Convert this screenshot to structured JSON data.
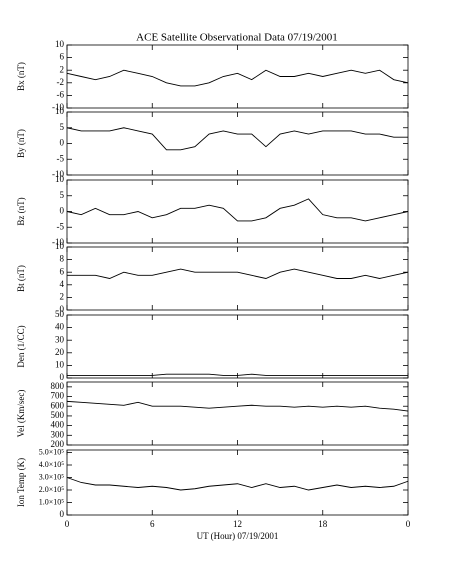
{
  "chart_data": [
    {
      "type": "line",
      "title": "ACE Satellite Observational Data   07/19/2001",
      "ylabel": "Bx (nT)",
      "xlim": [
        0,
        24
      ],
      "xticks": [
        0,
        6,
        12,
        18,
        {
          "value": 24,
          "label": "0"
        }
      ],
      "ylim": [
        -10,
        10
      ],
      "yticks": [
        -10,
        -6,
        -2,
        2,
        6,
        10
      ],
      "x": [
        0,
        1,
        2,
        3,
        4,
        5,
        6,
        7,
        8,
        9,
        10,
        11,
        12,
        13,
        14,
        15,
        16,
        17,
        18,
        19,
        20,
        21,
        22,
        23,
        24
      ],
      "color": "#000000",
      "values": [
        1,
        0,
        -1,
        0,
        2,
        1,
        0,
        -2,
        -3,
        -3,
        -2,
        0,
        1,
        -1,
        2,
        0,
        0,
        1,
        0,
        1,
        2,
        1,
        2,
        -1,
        -2
      ]
    },
    {
      "type": "line",
      "ylabel": "By (nT)",
      "xlim": [
        0,
        24
      ],
      "xticks": [
        0,
        6,
        12,
        18,
        {
          "value": 24,
          "label": "0"
        }
      ],
      "ylim": [
        -10,
        10
      ],
      "yticks": [
        -10,
        -5,
        0,
        5,
        10
      ],
      "x": [
        0,
        1,
        2,
        3,
        4,
        5,
        6,
        7,
        8,
        9,
        10,
        11,
        12,
        13,
        14,
        15,
        16,
        17,
        18,
        19,
        20,
        21,
        22,
        23,
        24
      ],
      "color": "#000000",
      "values": [
        5,
        4,
        4,
        4,
        5,
        4,
        3,
        -2,
        -2,
        -1,
        3,
        4,
        3,
        3,
        -1,
        3,
        4,
        3,
        4,
        4,
        4,
        3,
        3,
        2,
        2
      ]
    },
    {
      "type": "line",
      "ylabel": "Bz (nT)",
      "xlim": [
        0,
        24
      ],
      "xticks": [
        0,
        6,
        12,
        18,
        {
          "value": 24,
          "label": "0"
        }
      ],
      "ylim": [
        -10,
        10
      ],
      "yticks": [
        -10,
        -5,
        0,
        5,
        10
      ],
      "x": [
        0,
        1,
        2,
        3,
        4,
        5,
        6,
        7,
        8,
        9,
        10,
        11,
        12,
        13,
        14,
        15,
        16,
        17,
        18,
        19,
        20,
        21,
        22,
        23,
        24
      ],
      "color": "#000000",
      "values": [
        0,
        -1,
        1,
        -1,
        -1,
        0,
        -2,
        -1,
        1,
        1,
        2,
        1,
        -3,
        -3,
        -2,
        1,
        2,
        4,
        -1,
        -2,
        -2,
        -3,
        -2,
        -1,
        0
      ]
    },
    {
      "type": "line",
      "ylabel": "Bt (nT)",
      "xlim": [
        0,
        24
      ],
      "xticks": [
        0,
        6,
        12,
        18,
        {
          "value": 24,
          "label": "0"
        }
      ],
      "ylim": [
        0,
        10
      ],
      "yticks": [
        0,
        2,
        4,
        6,
        8,
        10
      ],
      "x": [
        0,
        1,
        2,
        3,
        4,
        5,
        6,
        7,
        8,
        9,
        10,
        11,
        12,
        13,
        14,
        15,
        16,
        17,
        18,
        19,
        20,
        21,
        22,
        23,
        24
      ],
      "color": "#000000",
      "values": [
        5.5,
        5.5,
        5.5,
        5,
        6,
        5.5,
        5.5,
        6,
        6.5,
        6,
        6,
        6,
        6,
        5.5,
        5,
        6,
        6.5,
        6,
        5.5,
        5,
        5,
        5.5,
        5,
        5.5,
        6
      ]
    },
    {
      "type": "line",
      "ylabel": "Den (1/CC)",
      "xlim": [
        0,
        24
      ],
      "xticks": [
        0,
        6,
        12,
        18,
        {
          "value": 24,
          "label": "0"
        }
      ],
      "ylim": [
        0,
        50
      ],
      "yticks": [
        0,
        10,
        20,
        30,
        40,
        50
      ],
      "x": [
        0,
        1,
        2,
        3,
        4,
        5,
        6,
        7,
        8,
        9,
        10,
        11,
        12,
        13,
        14,
        15,
        16,
        17,
        18,
        19,
        20,
        21,
        22,
        23,
        24
      ],
      "color": "#000000",
      "values": [
        2,
        2,
        2,
        2,
        2,
        2,
        2,
        3,
        3,
        3,
        3,
        2,
        2,
        3,
        2,
        2,
        2,
        2,
        2,
        2,
        2,
        2,
        2,
        2,
        2
      ]
    },
    {
      "type": "line",
      "ylabel": "Vel (Km/sec)",
      "xlim": [
        0,
        24
      ],
      "xticks": [
        0,
        6,
        12,
        18,
        {
          "value": 24,
          "label": "0"
        }
      ],
      "ylim": [
        200,
        850
      ],
      "yticks": [
        200,
        300,
        400,
        500,
        600,
        700,
        800
      ],
      "x": [
        0,
        1,
        2,
        3,
        4,
        5,
        6,
        7,
        8,
        9,
        10,
        11,
        12,
        13,
        14,
        15,
        16,
        17,
        18,
        19,
        20,
        21,
        22,
        23,
        24
      ],
      "color": "#000000",
      "values": [
        650,
        640,
        630,
        620,
        610,
        640,
        600,
        600,
        600,
        590,
        580,
        590,
        600,
        610,
        600,
        600,
        590,
        600,
        590,
        600,
        590,
        600,
        580,
        570,
        550
      ]
    },
    {
      "type": "line",
      "ylabel": "Ion Temp (K)",
      "xlabel": "UT (Hour)  07/19/2001",
      "xlim": [
        0,
        24
      ],
      "xticks": [
        0,
        6,
        12,
        18,
        {
          "value": 24,
          "label": "0"
        }
      ],
      "ylim": [
        0,
        520000
      ],
      "yticks": [
        0,
        {
          "value": 100000,
          "label": "1.0×10⁵"
        },
        {
          "value": 200000,
          "label": "2.0×10⁵"
        },
        {
          "value": 300000,
          "label": "3.0×10⁵"
        },
        {
          "value": 400000,
          "label": "4.0×10⁵"
        },
        {
          "value": 500000,
          "label": "5.0×10⁵"
        }
      ],
      "x": [
        0,
        1,
        2,
        3,
        4,
        5,
        6,
        7,
        8,
        9,
        10,
        11,
        12,
        13,
        14,
        15,
        16,
        17,
        18,
        19,
        20,
        21,
        22,
        23,
        24
      ],
      "color": "#000000",
      "values": [
        300000,
        260000,
        240000,
        240000,
        230000,
        220000,
        230000,
        220000,
        200000,
        210000,
        230000,
        240000,
        250000,
        220000,
        250000,
        220000,
        230000,
        200000,
        220000,
        240000,
        220000,
        230000,
        220000,
        230000,
        270000
      ]
    }
  ]
}
